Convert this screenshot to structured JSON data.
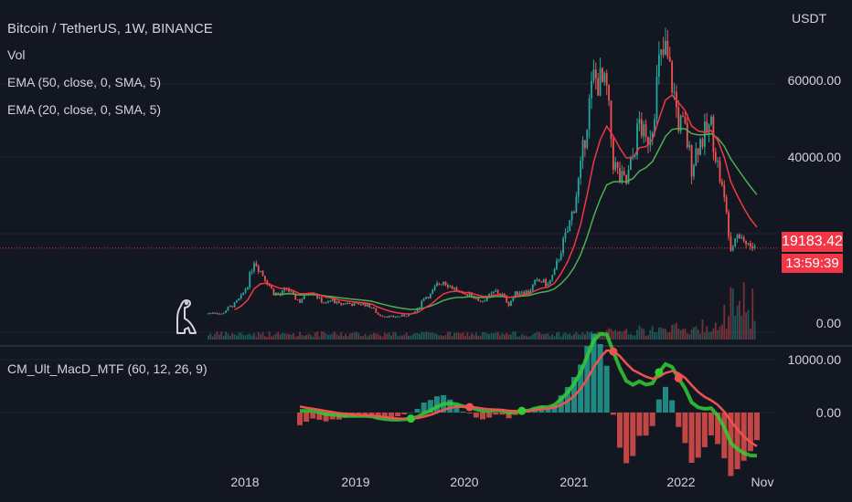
{
  "header": {
    "symbol_title": "Bitcoin / TetherUS, 1W, BINANCE",
    "indicators": [
      "Vol",
      "EMA (50, close, 0, SMA, 5)",
      "EMA (20, close, 0, SMA, 5)"
    ]
  },
  "price_axis": {
    "unit": "USDT",
    "labels": [
      "60000.00",
      "40000.00",
      "0.00"
    ],
    "last_price": "19183.42",
    "countdown": "13:59:39"
  },
  "oscillator": {
    "title": "CM_Ult_MacD_MTF (60, 12, 26, 9)",
    "labels": [
      "10000.00",
      "0.00"
    ]
  },
  "time_axis": {
    "labels": [
      "2018",
      "2019",
      "2020",
      "2021",
      "2022",
      "Nov"
    ]
  },
  "colors": {
    "background": "#131722",
    "up": "#26a69a",
    "down": "#ef5350",
    "ema20": "#f23645",
    "ema50": "#4caf50",
    "macd_green": "#33cc33",
    "price_badge": "#f23645"
  },
  "icons": {
    "watermark": "dinosaur-icon"
  },
  "chart_data": {
    "type": "candlestick",
    "title": "Bitcoin / TetherUS, 1W, BINANCE",
    "x_range": [
      "2017-08",
      "2022-11"
    ],
    "y_range": [
      0,
      70000
    ],
    "closes": [
      4300,
      4600,
      4100,
      5500,
      6400,
      8000,
      11000,
      16500,
      14000,
      11500,
      9000,
      8500,
      10000,
      8200,
      7000,
      8900,
      9300,
      7500,
      6500,
      7400,
      6300,
      6700,
      6400,
      6500,
      6300,
      5700,
      4000,
      3700,
      3500,
      3600,
      3800,
      4000,
      5200,
      8000,
      8500,
      10800,
      11800,
      10500,
      9700,
      8200,
      9100,
      7400,
      7200,
      8300,
      9300,
      8500,
      6400,
      8800,
      9500,
      9100,
      11300,
      11700,
      10800,
      13700,
      19000,
      23000,
      29000,
      37000,
      49000,
      58000,
      57000,
      55000,
      39000,
      35000,
      34000,
      40000,
      48000,
      43000,
      48000,
      61000,
      64000,
      57000,
      48000,
      46000,
      38000,
      43000,
      45000,
      47000,
      38000,
      30000,
      20000,
      23000,
      21000,
      19500,
      19183
    ]
  }
}
